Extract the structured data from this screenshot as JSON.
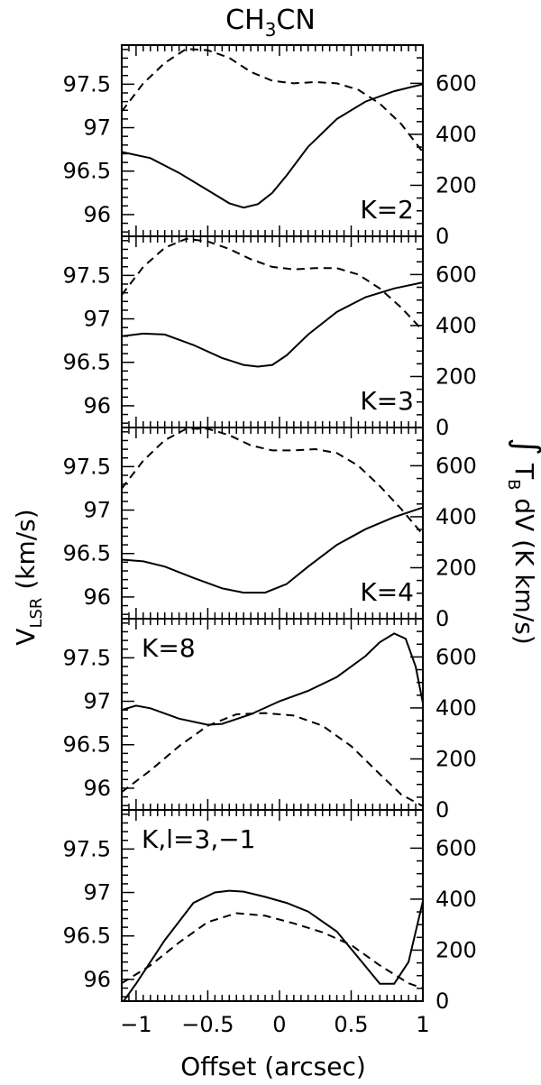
{
  "title": "CH",
  "title_sub": "3",
  "title_tail": "CN",
  "left_axis": {
    "main": "V",
    "sub": "LSR",
    "rest": " (km/s)"
  },
  "right_axis": {
    "integral": "∫",
    "tb": "T",
    "sub": "B",
    "rest": " dV (K km/s)"
  },
  "x_axis": {
    "label": "Offset (arcsec)"
  },
  "chart_data": {
    "type": "line",
    "title": "CH3CN",
    "xlabel": "Offset (arcsec)",
    "ylabel_left": "V_LSR (km/s)",
    "ylabel_right": "∫ T_B dV (K km/s)",
    "xlim": [
      -1.1,
      1.0
    ],
    "x_ticks": [
      -1,
      -0.5,
      0,
      0.5,
      1
    ],
    "x_tick_labels": [
      "−1",
      "−0.5",
      "0",
      "0.5",
      "1"
    ],
    "ylim_left": [
      95.75,
      97.95
    ],
    "ylim_right": [
      0,
      750
    ],
    "y_left_ticks": [
      96,
      96.5,
      97,
      97.5
    ],
    "y_left_tick_labels": [
      "96",
      "96.5",
      "97",
      "97.5"
    ],
    "y_right_ticks": [
      0,
      200,
      400,
      600
    ],
    "y_right_tick_labels": [
      "0",
      "200",
      "400",
      "600"
    ],
    "panels": [
      {
        "label": "K=2",
        "label_pos": "right",
        "series": [
          {
            "style": "solid",
            "axis": "left",
            "x": [
              -1.1,
              -0.9,
              -0.7,
              -0.5,
              -0.35,
              -0.25,
              -0.15,
              -0.05,
              0.05,
              0.2,
              0.4,
              0.6,
              0.8,
              1.0
            ],
            "y": [
              96.72,
              96.65,
              96.48,
              96.28,
              96.13,
              96.08,
              96.12,
              96.25,
              96.45,
              96.78,
              97.1,
              97.3,
              97.42,
              97.5
            ]
          },
          {
            "style": "dashed",
            "axis": "right",
            "x": [
              -1.1,
              -0.95,
              -0.8,
              -0.65,
              -0.5,
              -0.35,
              -0.2,
              -0.05,
              0.1,
              0.25,
              0.4,
              0.55,
              0.7,
              0.85,
              1.0
            ],
            "y": [
              490,
              600,
              680,
              735,
              730,
              700,
              645,
              610,
              600,
              605,
              600,
              575,
              520,
              440,
              330
            ]
          }
        ]
      },
      {
        "label": "K=3",
        "label_pos": "right",
        "series": [
          {
            "style": "solid",
            "axis": "left",
            "x": [
              -1.1,
              -0.95,
              -0.8,
              -0.6,
              -0.4,
              -0.25,
              -0.15,
              -0.05,
              0.05,
              0.2,
              0.4,
              0.6,
              0.8,
              1.0
            ],
            "y": [
              96.8,
              96.83,
              96.82,
              96.7,
              96.55,
              96.47,
              96.45,
              96.47,
              96.58,
              96.82,
              97.08,
              97.25,
              97.35,
              97.42
            ]
          },
          {
            "style": "dashed",
            "axis": "right",
            "x": [
              -1.1,
              -0.95,
              -0.8,
              -0.65,
              -0.5,
              -0.35,
              -0.2,
              -0.05,
              0.1,
              0.25,
              0.4,
              0.55,
              0.7,
              0.85,
              1.0
            ],
            "y": [
              520,
              630,
              705,
              740,
              730,
              700,
              660,
              630,
              620,
              625,
              625,
              600,
              545,
              470,
              380
            ]
          }
        ]
      },
      {
        "label": "K=4",
        "label_pos": "right",
        "series": [
          {
            "style": "solid",
            "axis": "left",
            "x": [
              -1.1,
              -0.95,
              -0.8,
              -0.6,
              -0.4,
              -0.25,
              -0.1,
              0.05,
              0.2,
              0.4,
              0.6,
              0.8,
              1.0
            ],
            "y": [
              96.43,
              96.41,
              96.35,
              96.22,
              96.1,
              96.05,
              96.05,
              96.15,
              96.35,
              96.6,
              96.78,
              96.92,
              97.03
            ]
          },
          {
            "style": "dashed",
            "axis": "right",
            "x": [
              -1.1,
              -0.95,
              -0.8,
              -0.65,
              -0.5,
              -0.35,
              -0.2,
              -0.05,
              0.1,
              0.25,
              0.4,
              0.55,
              0.7,
              0.85,
              1.0
            ],
            "y": [
              510,
              620,
              700,
              745,
              745,
              720,
              680,
              660,
              660,
              665,
              650,
              600,
              520,
              430,
              330
            ]
          }
        ]
      },
      {
        "label": "K=8",
        "label_pos": "left",
        "series": [
          {
            "style": "solid",
            "axis": "left",
            "x": [
              -1.1,
              -1.0,
              -0.9,
              -0.7,
              -0.5,
              -0.4,
              -0.2,
              0.0,
              0.2,
              0.4,
              0.6,
              0.7,
              0.8,
              0.88,
              0.95,
              1.0
            ],
            "y": [
              96.9,
              96.95,
              96.92,
              96.8,
              96.73,
              96.74,
              96.85,
              97.0,
              97.12,
              97.28,
              97.52,
              97.68,
              97.78,
              97.72,
              97.4,
              96.98
            ]
          },
          {
            "style": "dashed",
            "axis": "right",
            "x": [
              -1.1,
              -0.9,
              -0.7,
              -0.5,
              -0.3,
              -0.1,
              0.1,
              0.3,
              0.5,
              0.7,
              0.85,
              1.0
            ],
            "y": [
              70,
              155,
              250,
              330,
              375,
              380,
              370,
              330,
              250,
              140,
              60,
              15
            ]
          }
        ]
      },
      {
        "label": "K,l=3,−1",
        "label_pos": "left",
        "series": [
          {
            "style": "solid",
            "axis": "left",
            "x": [
              -1.1,
              -1.0,
              -0.8,
              -0.6,
              -0.45,
              -0.35,
              -0.25,
              -0.1,
              0.05,
              0.2,
              0.4,
              0.55,
              0.7,
              0.8,
              0.9,
              1.0
            ],
            "y": [
              95.72,
              95.95,
              96.45,
              96.88,
              97.0,
              97.02,
              97.01,
              96.95,
              96.88,
              96.78,
              96.55,
              96.25,
              95.95,
              95.95,
              96.2,
              96.9
            ]
          },
          {
            "style": "dashed",
            "axis": "right",
            "x": [
              -1.1,
              -0.9,
              -0.7,
              -0.5,
              -0.3,
              -0.1,
              0.1,
              0.3,
              0.5,
              0.7,
              0.9,
              1.0
            ],
            "y": [
              70,
              140,
              230,
              310,
              345,
              335,
              305,
              270,
              220,
              140,
              70,
              50
            ]
          }
        ]
      }
    ]
  }
}
